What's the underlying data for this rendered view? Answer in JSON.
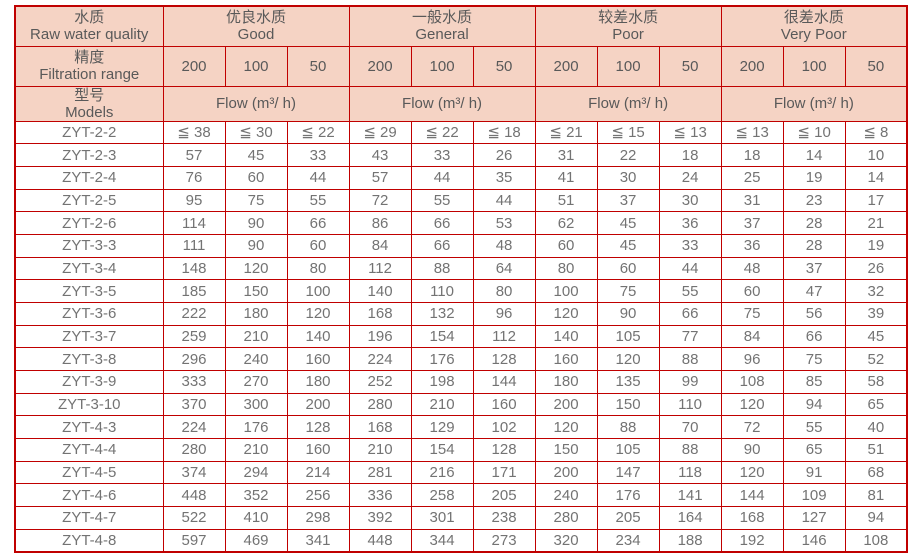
{
  "colors": {
    "border": "#c00000",
    "header_bg": "#f5d3c4",
    "header_text": "#595959",
    "body_text": "#737373"
  },
  "table": {
    "corner": {
      "quality": {
        "zh": "水质",
        "en": "Raw water quality"
      },
      "filtration": {
        "zh": "精度",
        "en": "Filtration range"
      },
      "models": {
        "zh": "型号",
        "en": "Models"
      }
    },
    "quality_groups": [
      {
        "zh": "优良水质",
        "en": "Good"
      },
      {
        "zh": "一般水质",
        "en": "General"
      },
      {
        "zh": "较差水质",
        "en": "Poor"
      },
      {
        "zh": "很差水质",
        "en": "Very Poor"
      }
    ],
    "filtration_values": [
      "200",
      "100",
      "50"
    ],
    "flow_label": "Flow (m³/ h)",
    "rows": [
      {
        "model": "ZYT-2-2",
        "values": [
          "≦ 38",
          "≦ 30",
          "≦ 22",
          "≦ 29",
          "≦ 22",
          "≦ 18",
          "≦ 21",
          "≦ 15",
          "≦ 13",
          "≦ 13",
          "≦ 10",
          "≦ 8"
        ]
      },
      {
        "model": "ZYT-2-3",
        "values": [
          "57",
          "45",
          "33",
          "43",
          "33",
          "26",
          "31",
          "22",
          "18",
          "18",
          "14",
          "10"
        ]
      },
      {
        "model": "ZYT-2-4",
        "values": [
          "76",
          "60",
          "44",
          "57",
          "44",
          "35",
          "41",
          "30",
          "24",
          "25",
          "19",
          "14"
        ]
      },
      {
        "model": "ZYT-2-5",
        "values": [
          "95",
          "75",
          "55",
          "72",
          "55",
          "44",
          "51",
          "37",
          "30",
          "31",
          "23",
          "17"
        ]
      },
      {
        "model": "ZYT-2-6",
        "values": [
          "114",
          "90",
          "66",
          "86",
          "66",
          "53",
          "62",
          "45",
          "36",
          "37",
          "28",
          "21"
        ]
      },
      {
        "model": "ZYT-3-3",
        "values": [
          "111",
          "90",
          "60",
          "84",
          "66",
          "48",
          "60",
          "45",
          "33",
          "36",
          "28",
          "19"
        ]
      },
      {
        "model": "ZYT-3-4",
        "values": [
          "148",
          "120",
          "80",
          "112",
          "88",
          "64",
          "80",
          "60",
          "44",
          "48",
          "37",
          "26"
        ]
      },
      {
        "model": "ZYT-3-5",
        "values": [
          "185",
          "150",
          "100",
          "140",
          "110",
          "80",
          "100",
          "75",
          "55",
          "60",
          "47",
          "32"
        ]
      },
      {
        "model": "ZYT-3-6",
        "values": [
          "222",
          "180",
          "120",
          "168",
          "132",
          "96",
          "120",
          "90",
          "66",
          "75",
          "56",
          "39"
        ]
      },
      {
        "model": "ZYT-3-7",
        "values": [
          "259",
          "210",
          "140",
          "196",
          "154",
          "112",
          "140",
          "105",
          "77",
          "84",
          "66",
          "45"
        ]
      },
      {
        "model": "ZYT-3-8",
        "values": [
          "296",
          "240",
          "160",
          "224",
          "176",
          "128",
          "160",
          "120",
          "88",
          "96",
          "75",
          "52"
        ]
      },
      {
        "model": "ZYT-3-9",
        "values": [
          "333",
          "270",
          "180",
          "252",
          "198",
          "144",
          "180",
          "135",
          "99",
          "108",
          "85",
          "58"
        ]
      },
      {
        "model": "ZYT-3-10",
        "values": [
          "370",
          "300",
          "200",
          "280",
          "210",
          "160",
          "200",
          "150",
          "110",
          "120",
          "94",
          "65"
        ]
      },
      {
        "model": "ZYT-4-3",
        "values": [
          "224",
          "176",
          "128",
          "168",
          "129",
          "102",
          "120",
          "88",
          "70",
          "72",
          "55",
          "40"
        ]
      },
      {
        "model": "ZYT-4-4",
        "values": [
          "280",
          "210",
          "160",
          "210",
          "154",
          "128",
          "150",
          "105",
          "88",
          "90",
          "65",
          "51"
        ]
      },
      {
        "model": "ZYT-4-5",
        "values": [
          "374",
          "294",
          "214",
          "281",
          "216",
          "171",
          "200",
          "147",
          "118",
          "120",
          "91",
          "68"
        ]
      },
      {
        "model": "ZYT-4-6",
        "values": [
          "448",
          "352",
          "256",
          "336",
          "258",
          "205",
          "240",
          "176",
          "141",
          "144",
          "109",
          "81"
        ]
      },
      {
        "model": "ZYT-4-7",
        "values": [
          "522",
          "410",
          "298",
          "392",
          "301",
          "238",
          "280",
          "205",
          "164",
          "168",
          "127",
          "94"
        ]
      },
      {
        "model": "ZYT-4-8",
        "values": [
          "597",
          "469",
          "341",
          "448",
          "344",
          "273",
          "320",
          "234",
          "188",
          "192",
          "146",
          "108"
        ]
      }
    ]
  }
}
